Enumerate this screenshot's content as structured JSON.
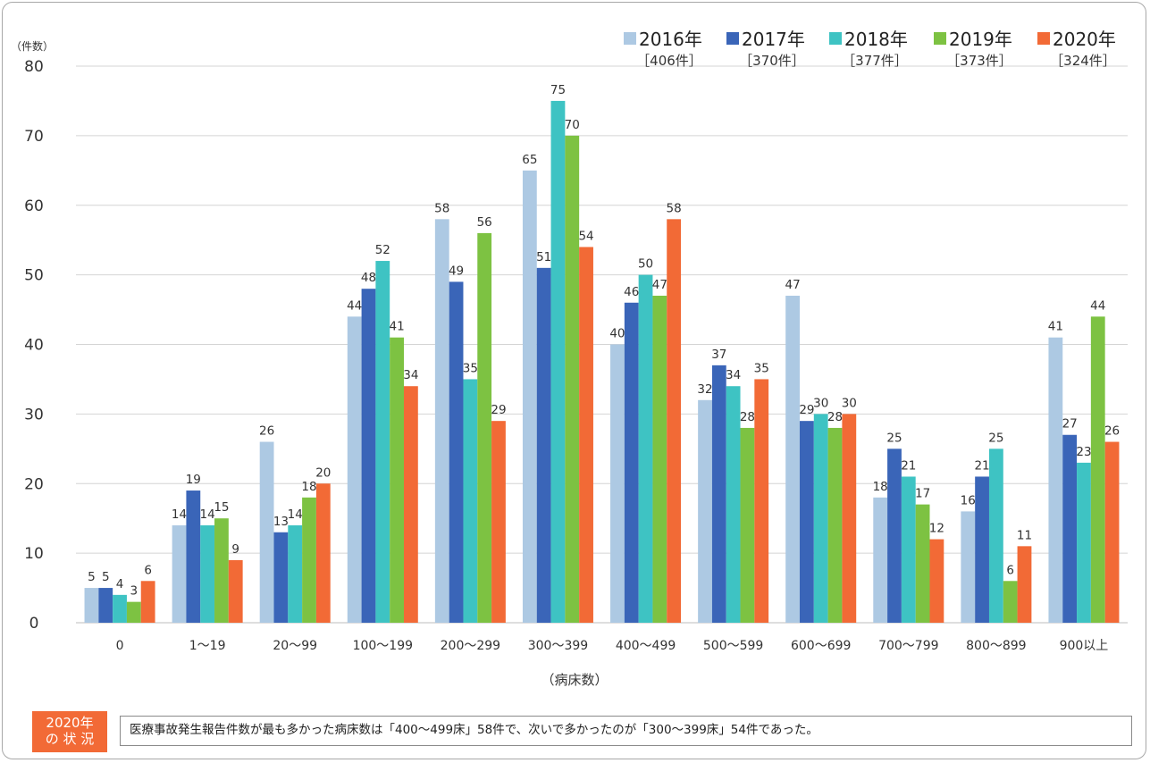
{
  "chart_data": {
    "type": "bar",
    "y_unit_label": "（件数）",
    "xlabel": "（病床数）",
    "ylim": [
      0,
      80
    ],
    "yticks": [
      0,
      10,
      20,
      30,
      40,
      50,
      60,
      70,
      80
    ],
    "grid": true,
    "legend_position": "top-right",
    "categories": [
      "0",
      "1〜19",
      "20〜99",
      "100〜199",
      "200〜299",
      "300〜399",
      "400〜499",
      "500〜599",
      "600〜699",
      "700〜799",
      "800〜899",
      "900以上"
    ],
    "series": [
      {
        "name": "2016年",
        "total": "［406件］",
        "color": "#adc9e3",
        "values": [
          5,
          14,
          26,
          44,
          58,
          65,
          40,
          32,
          47,
          18,
          16,
          41
        ]
      },
      {
        "name": "2017年",
        "total": "［370件］",
        "color": "#3a65b8",
        "values": [
          5,
          19,
          13,
          48,
          49,
          51,
          46,
          37,
          29,
          25,
          21,
          27
        ]
      },
      {
        "name": "2018年",
        "total": "［377件］",
        "color": "#3ec3c3",
        "values": [
          4,
          14,
          14,
          52,
          35,
          75,
          50,
          34,
          30,
          21,
          25,
          23
        ]
      },
      {
        "name": "2019年",
        "total": "［373件］",
        "color": "#7dc242",
        "values": [
          3,
          15,
          18,
          41,
          56,
          70,
          47,
          28,
          28,
          17,
          6,
          44
        ]
      },
      {
        "name": "2020年",
        "total": "［324件］",
        "color": "#f26a36",
        "values": [
          6,
          9,
          20,
          34,
          29,
          54,
          58,
          35,
          30,
          12,
          11,
          26
        ]
      }
    ]
  },
  "status": {
    "tag_line1": "2020年",
    "tag_line2": "の 状 況",
    "text": "医療事故発生報告件数が最も多かった病床数は「400〜499床」58件で、次いで多かったのが「300〜399床」54件であった。"
  }
}
